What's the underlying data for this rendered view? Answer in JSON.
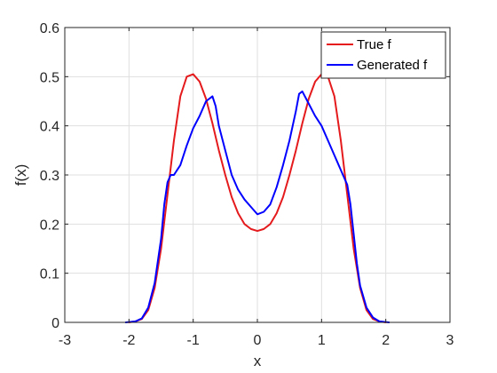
{
  "chart_data": {
    "type": "line",
    "title": "",
    "xlabel": "x",
    "ylabel": "f(x)",
    "xlim": [
      -3,
      3
    ],
    "ylim": [
      0,
      0.6
    ],
    "xticks": [
      -3,
      -2,
      -1,
      0,
      1,
      2,
      3
    ],
    "xtick_labels": [
      "-3",
      "-2",
      "-1",
      "0",
      "1",
      "2",
      "3"
    ],
    "yticks": [
      0,
      0.1,
      0.2,
      0.3,
      0.4,
      0.5,
      0.6
    ],
    "ytick_labels": [
      "0",
      "0.1",
      "0.2",
      "0.3",
      "0.4",
      "0.5",
      "0.6"
    ],
    "grid": true,
    "legend_position": "top-right",
    "series": [
      {
        "name": "True f",
        "color": "#e41a1c",
        "x": [
          -2.0,
          -1.9,
          -1.8,
          -1.7,
          -1.6,
          -1.5,
          -1.4,
          -1.3,
          -1.2,
          -1.1,
          -1.0,
          -0.9,
          -0.8,
          -0.7,
          -0.6,
          -0.5,
          -0.4,
          -0.3,
          -0.2,
          -0.1,
          0.0,
          0.1,
          0.2,
          0.3,
          0.4,
          0.5,
          0.6,
          0.7,
          0.8,
          0.9,
          1.0,
          1.1,
          1.2,
          1.3,
          1.4,
          1.5,
          1.6,
          1.7,
          1.8,
          1.9,
          2.0
        ],
        "values": [
          0.0,
          0.002,
          0.007,
          0.025,
          0.07,
          0.15,
          0.26,
          0.37,
          0.46,
          0.5,
          0.505,
          0.49,
          0.455,
          0.405,
          0.35,
          0.3,
          0.255,
          0.222,
          0.2,
          0.19,
          0.186,
          0.19,
          0.2,
          0.222,
          0.255,
          0.3,
          0.35,
          0.405,
          0.455,
          0.49,
          0.505,
          0.5,
          0.46,
          0.37,
          0.26,
          0.15,
          0.07,
          0.025,
          0.007,
          0.002,
          0.0
        ]
      },
      {
        "name": "Generated f",
        "color": "#0000ff",
        "x": [
          -2.05,
          -1.9,
          -1.8,
          -1.7,
          -1.6,
          -1.5,
          -1.45,
          -1.4,
          -1.35,
          -1.3,
          -1.25,
          -1.2,
          -1.1,
          -1.0,
          -0.9,
          -0.8,
          -0.7,
          -0.65,
          -0.6,
          -0.5,
          -0.4,
          -0.3,
          -0.2,
          -0.1,
          0.0,
          0.1,
          0.2,
          0.3,
          0.4,
          0.5,
          0.6,
          0.65,
          0.7,
          0.8,
          0.9,
          1.0,
          1.1,
          1.2,
          1.3,
          1.35,
          1.4,
          1.45,
          1.5,
          1.55,
          1.6,
          1.7,
          1.8,
          1.9,
          2.05
        ],
        "values": [
          0.0,
          0.002,
          0.008,
          0.03,
          0.08,
          0.17,
          0.24,
          0.285,
          0.3,
          0.3,
          0.31,
          0.32,
          0.36,
          0.395,
          0.42,
          0.45,
          0.46,
          0.44,
          0.4,
          0.35,
          0.3,
          0.27,
          0.25,
          0.235,
          0.22,
          0.225,
          0.24,
          0.275,
          0.32,
          0.37,
          0.43,
          0.465,
          0.47,
          0.445,
          0.42,
          0.4,
          0.37,
          0.34,
          0.31,
          0.295,
          0.28,
          0.24,
          0.18,
          0.12,
          0.075,
          0.03,
          0.01,
          0.002,
          0.0
        ]
      }
    ]
  }
}
